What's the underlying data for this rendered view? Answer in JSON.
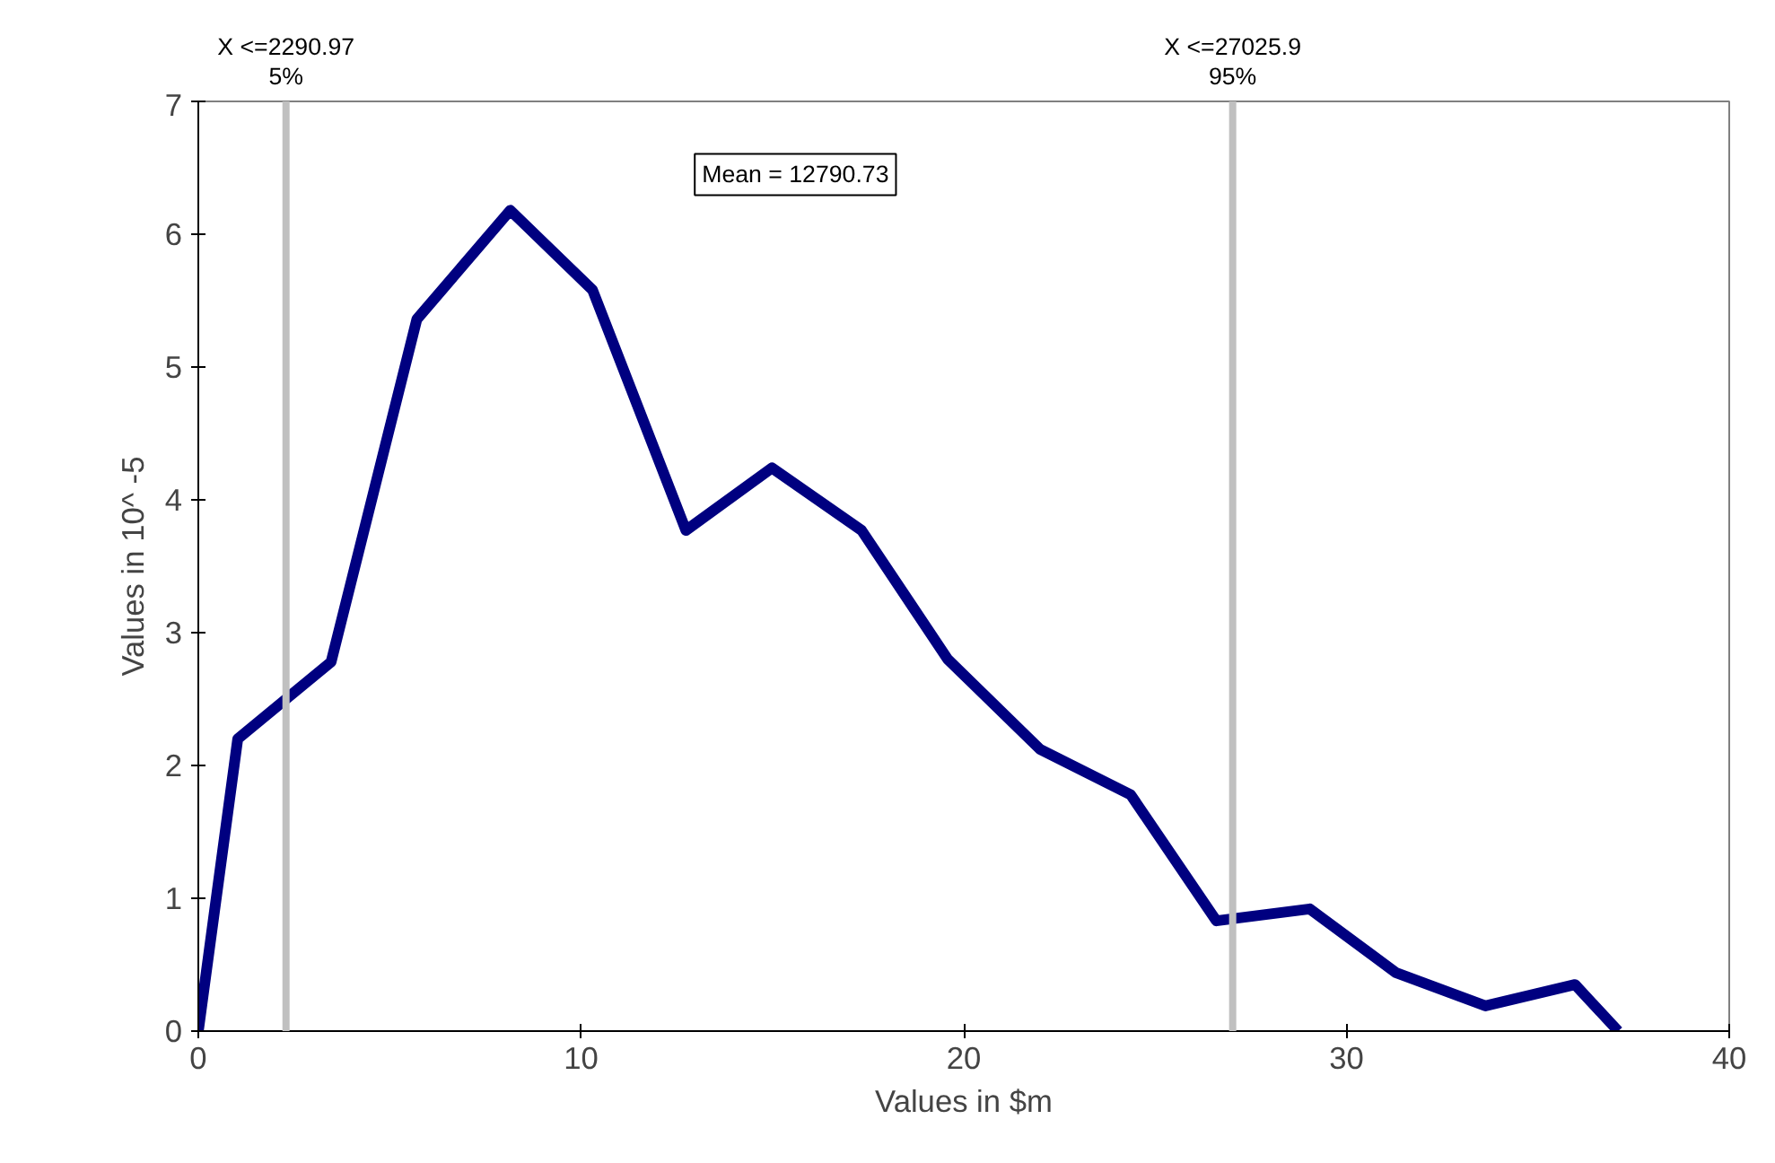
{
  "chart_data": {
    "type": "line",
    "xlabel": "Values in $m",
    "ylabel": "Values in 10^ -5",
    "x": [
      0,
      1.03,
      3.47,
      5.71,
      8.15,
      10.3,
      12.74,
      14.99,
      17.33,
      19.58,
      22.0,
      24.36,
      26.6,
      29.04,
      31.29,
      33.63,
      35.97,
      37.1
    ],
    "series": [
      {
        "color": "#000080",
        "values": [
          0,
          2.2,
          2.78,
          5.36,
          6.18,
          5.58,
          3.77,
          4.24,
          3.77,
          2.8,
          2.12,
          1.78,
          0.83,
          0.92,
          0.44,
          0.19,
          0.35,
          0
        ]
      }
    ],
    "xlim": [
      0,
      40
    ],
    "xticks": [
      0,
      10,
      20,
      30,
      40
    ],
    "ylim": [
      0,
      7
    ],
    "yticks": [
      0,
      1,
      2,
      3,
      4,
      5,
      6,
      7
    ],
    "grid": false,
    "marker": "none",
    "line_style": "solid",
    "ref_lines": [
      {
        "axis": "x",
        "value": 2.29097,
        "label": "X <=2290.97\n5%",
        "color": "#c0c0c0"
      },
      {
        "axis": "x",
        "value": 27.0259,
        "label": "X <=27025.9\n95%",
        "color": "#c0c0c0"
      }
    ],
    "annotations": [
      "Mean = 12790.73"
    ]
  }
}
